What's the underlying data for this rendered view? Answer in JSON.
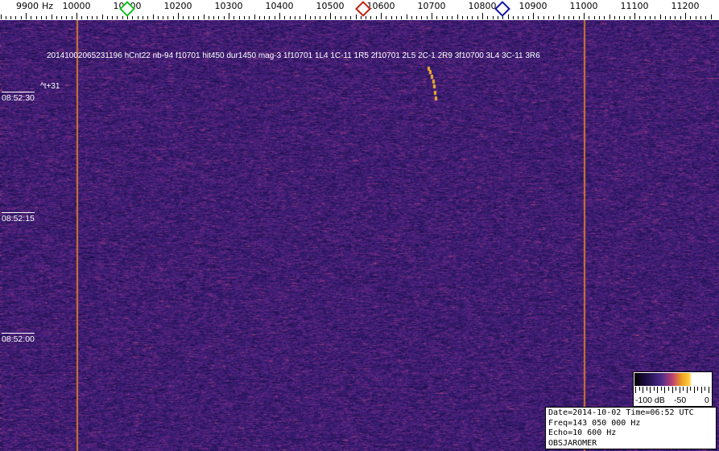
{
  "ruler": {
    "unit": "Hz",
    "labels": [
      9900,
      10000,
      10100,
      10200,
      10300,
      10400,
      10500,
      10600,
      10700,
      10800,
      10900,
      11000,
      11100,
      11200
    ],
    "markers": [
      {
        "freq": 10100,
        "color": "#10c020"
      },
      {
        "freq": 10565,
        "color": "#c02010"
      },
      {
        "freq": 10840,
        "color": "#1010a0"
      }
    ]
  },
  "spectrogram": {
    "palette": "purple-orange",
    "carrier_lines_hz": [
      10000,
      11000
    ]
  },
  "annotation": {
    "text": "20141002065231196 hCnt22 nb-94 f10701 hit450 dur1450 mag-3 1f10701 1L4 1C-11 1R5 2f10701 2L5 2C-1 2R9 3f10700 3L4 3C-11 3R6",
    "offset": "^t+31"
  },
  "time_labels": [
    "08:52:30",
    "08:52:15",
    "08:52:00"
  ],
  "colorbar": {
    "labels": [
      "-100 dB",
      "-50",
      "0"
    ]
  },
  "info": {
    "line1": "Date=2014-10-02 Time=06:52 UTC",
    "line2": "Freq=143 050 000 Hz",
    "line3": "Echo=10 600 Hz",
    "line4": "OBSJAROMER"
  }
}
